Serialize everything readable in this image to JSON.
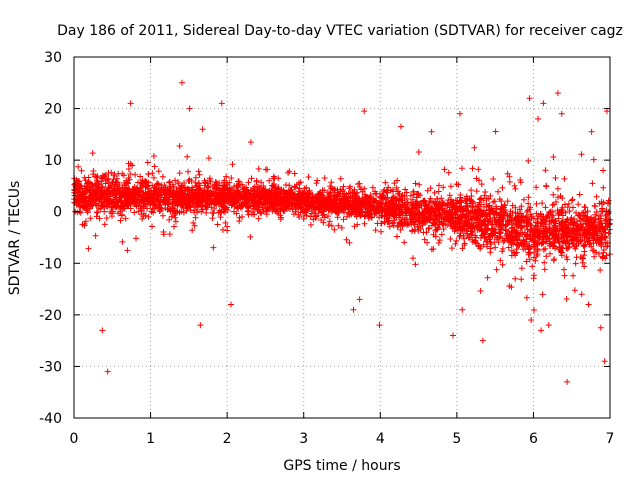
{
  "chart_data": {
    "type": "scatter",
    "title": "Day 186 of 2011, Sidereal Day-to-day VTEC variation (SDTVAR) for receiver cagz",
    "xlabel": "GPS time / hours",
    "ylabel": "SDTVAR / TECUs",
    "xlim": [
      0,
      7
    ],
    "ylim": [
      -40,
      30
    ],
    "xticks": [
      0,
      1,
      2,
      3,
      4,
      5,
      6,
      7
    ],
    "yticks": [
      -40,
      -30,
      -20,
      -10,
      0,
      10,
      20,
      30
    ],
    "grid": true,
    "legend": "none",
    "marker": "+",
    "color": "#ff0000",
    "series": [
      {
        "name": "SDTVAR",
        "description": "Dense scatter of several thousand points; band roughly 0 to +6 TECU in hours 0-2, narrowing around 0 to +3 in hours 2-4, widening and drifting negative (about -2 to -8) in hours 4.5-7.",
        "outliers": [
          {
            "x": 0.44,
            "y": -31
          },
          {
            "x": 0.74,
            "y": 21
          },
          {
            "x": 1.41,
            "y": 25
          },
          {
            "x": 1.51,
            "y": 20
          },
          {
            "x": 1.93,
            "y": 21
          },
          {
            "x": 1.68,
            "y": 16
          },
          {
            "x": 2.31,
            "y": 13.5
          },
          {
            "x": 1.65,
            "y": -22
          },
          {
            "x": 2.05,
            "y": -18
          },
          {
            "x": 0.37,
            "y": -23
          },
          {
            "x": 3.79,
            "y": 19.5
          },
          {
            "x": 4.27,
            "y": 16.5
          },
          {
            "x": 4.67,
            "y": 15.5
          },
          {
            "x": 5.04,
            "y": 19
          },
          {
            "x": 3.65,
            "y": -19
          },
          {
            "x": 3.99,
            "y": -22
          },
          {
            "x": 3.73,
            "y": -17
          },
          {
            "x": 4.95,
            "y": -24
          },
          {
            "x": 5.34,
            "y": -25
          },
          {
            "x": 5.07,
            "y": -19
          },
          {
            "x": 5.95,
            "y": 22
          },
          {
            "x": 6.06,
            "y": 18
          },
          {
            "x": 6.13,
            "y": 21
          },
          {
            "x": 6.32,
            "y": 23
          },
          {
            "x": 6.37,
            "y": 19
          },
          {
            "x": 6.96,
            "y": 19.5
          },
          {
            "x": 6.91,
            "y": 8
          },
          {
            "x": 6.76,
            "y": 15.5
          },
          {
            "x": 5.97,
            "y": -21
          },
          {
            "x": 6.1,
            "y": -23
          },
          {
            "x": 6.2,
            "y": -22
          },
          {
            "x": 6.44,
            "y": -33
          },
          {
            "x": 6.93,
            "y": -29
          },
          {
            "x": 6.88,
            "y": -22.5
          },
          {
            "x": 6.72,
            "y": -18
          },
          {
            "x": 6.63,
            "y": -16
          }
        ]
      }
    ]
  }
}
